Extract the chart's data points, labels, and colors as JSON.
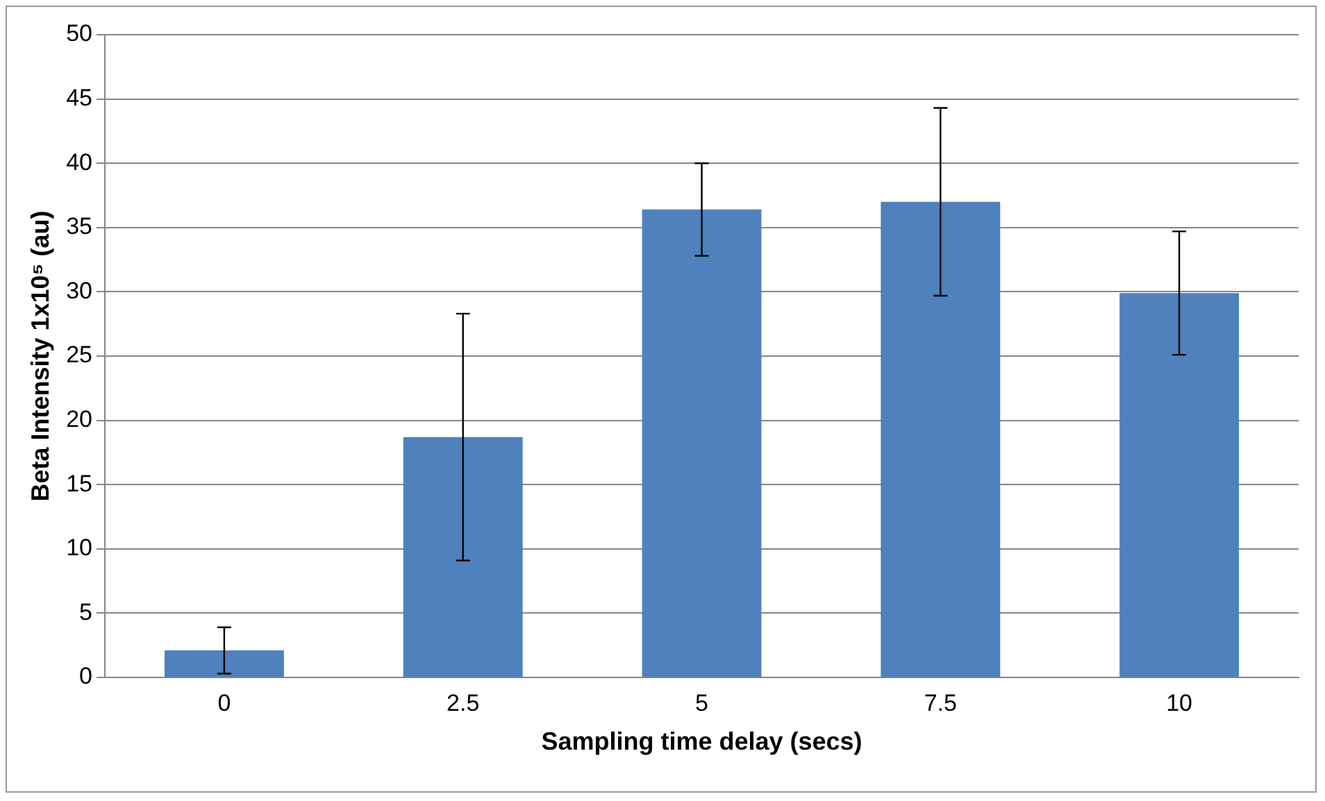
{
  "chart_data": {
    "type": "bar",
    "xlabel": "Sampling time delay (secs)",
    "ylabel": "Beta Intensity 1x10⁵ (au)",
    "categories": [
      "0",
      "2.5",
      "5",
      "7.5",
      "10"
    ],
    "values": [
      2.1,
      18.7,
      36.4,
      37.0,
      29.9
    ],
    "errors": [
      1.8,
      9.6,
      3.6,
      7.3,
      4.8
    ],
    "color": "#4f81bd",
    "ylim": [
      0,
      50
    ],
    "yticks": [
      0,
      5,
      10,
      15,
      20,
      25,
      30,
      35,
      40,
      45,
      50
    ],
    "grid": "y",
    "legend": false
  }
}
